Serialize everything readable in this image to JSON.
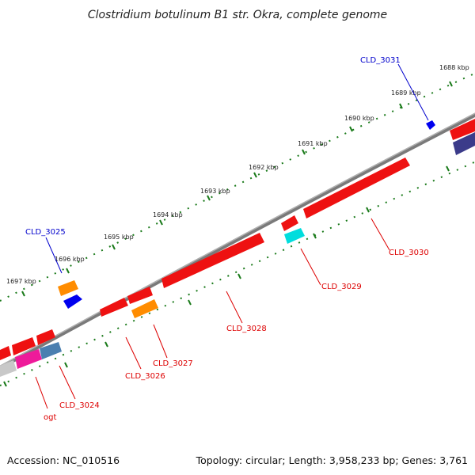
{
  "title": "Clostridium botulinum B1 str. Okra, complete genome",
  "footer": {
    "accession": "Accession: NC_010516",
    "topology": "Topology: circular; Length: 3,958,233 bp; Genes: 3,761"
  },
  "colors": {
    "backbone": "#7a7a7a",
    "tick": "#1a7a1a",
    "gene_red": "#ee1111",
    "label_red": "#dd0000",
    "label_blue": "#0000cc"
  },
  "ticks": [
    {
      "label": "1688 kbp",
      "kbp": 1688
    },
    {
      "label": "1689 kbp",
      "kbp": 1689
    },
    {
      "label": "1690 kbp",
      "kbp": 1690
    },
    {
      "label": "1691 kbp",
      "kbp": 1691
    },
    {
      "label": "1692 kbp",
      "kbp": 1692
    },
    {
      "label": "1693 kbp",
      "kbp": 1693
    },
    {
      "label": "1694 kbp",
      "kbp": 1694
    },
    {
      "label": "1695 kbp",
      "kbp": 1695
    },
    {
      "label": "1696 kbp",
      "kbp": 1696
    },
    {
      "label": "1697 kbp",
      "kbp": 1697
    }
  ],
  "gene_labels": [
    {
      "text": "CLD_3031",
      "color": "blue"
    },
    {
      "text": "CLD_3025",
      "color": "blue"
    },
    {
      "text": "CLD_3030",
      "color": "red"
    },
    {
      "text": "CLD_3029",
      "color": "red"
    },
    {
      "text": "CLD_3028",
      "color": "red"
    },
    {
      "text": "CLD_3027",
      "color": "red"
    },
    {
      "text": "CLD_3026",
      "color": "red"
    },
    {
      "text": "CLD_3024",
      "color": "red"
    },
    {
      "text": "ogt",
      "color": "red"
    }
  ]
}
